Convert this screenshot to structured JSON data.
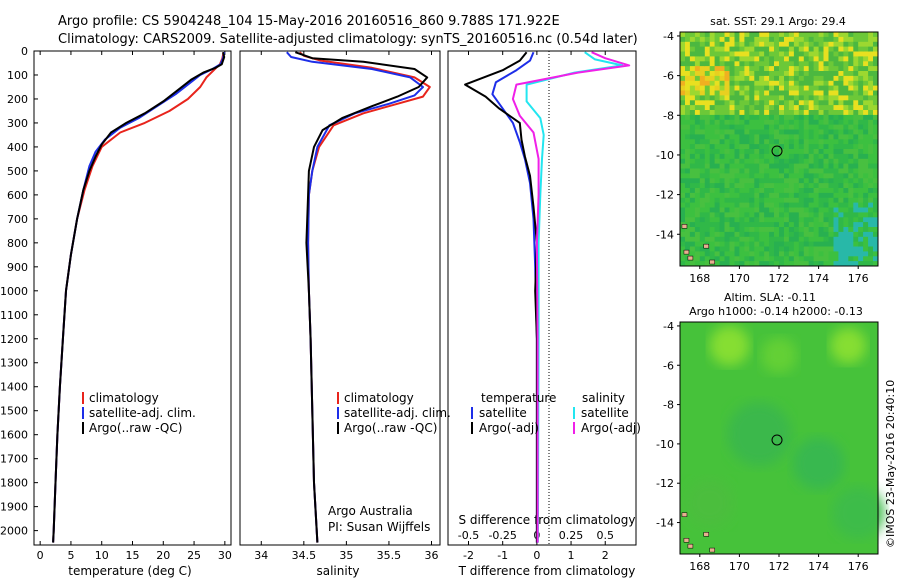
{
  "title_line1": "Argo profile: CS 5904248_104 15-May-2016 20160516_860 9.788S 171.922E",
  "title_line2": "Climatology: CARS2009. Satellite-adjusted climatology: synTS_20160516.nc (0.54d later)",
  "credit_line1": "Argo Australia",
  "credit_line2": "PI: Susan Wijffels",
  "timestamp": "©IMOS 23-May-2016 20:40:10",
  "colors": {
    "climatology": "#e8241c",
    "satellite": "#1d2ee8",
    "argo": "#000000",
    "sal_satellite": "#22e6f0",
    "sal_argo": "#f020e8"
  },
  "legend_profiles": [
    "climatology",
    "satellite-adj. clim.",
    "Argo(..raw -QC)"
  ],
  "legend_diff": {
    "temp_header": "temperature",
    "sal_header": "salinity",
    "satellite": "satellite",
    "argo": "Argo(-adj)"
  },
  "chart_data": [
    {
      "type": "line",
      "xlabel": "temperature (deg C)",
      "ylabel": "",
      "xlim": [
        -1,
        31
      ],
      "ylim": [
        2060,
        0
      ],
      "xticks": [
        0,
        5,
        10,
        15,
        20,
        25,
        30
      ],
      "yticks": [
        0,
        100,
        200,
        300,
        400,
        500,
        600,
        700,
        800,
        900,
        1000,
        1100,
        1200,
        1300,
        1400,
        1500,
        1600,
        1700,
        1800,
        1900,
        2000
      ],
      "series": [
        {
          "name": "climatology",
          "color": "#e8241c",
          "points": [
            [
              29.8,
              5
            ],
            [
              29.6,
              30
            ],
            [
              29.2,
              55
            ],
            [
              28.2,
              80
            ],
            [
              27,
              110
            ],
            [
              26,
              150
            ],
            [
              24,
              200
            ],
            [
              21,
              250
            ],
            [
              17,
              300
            ],
            [
              13,
              340
            ],
            [
              10,
              400
            ],
            [
              8.5,
              480
            ],
            [
              7.2,
              580
            ],
            [
              6,
              700
            ],
            [
              5,
              850
            ],
            [
              4.2,
              1000
            ],
            [
              3.7,
              1200
            ],
            [
              3.2,
              1400
            ],
            [
              2.8,
              1600
            ],
            [
              2.5,
              1800
            ],
            [
              2.2,
              2000
            ],
            [
              2.1,
              2050
            ]
          ]
        },
        {
          "name": "satellite-adj. clim.",
          "color": "#1d2ee8",
          "points": [
            [
              29.9,
              5
            ],
            [
              29.7,
              30
            ],
            [
              29.3,
              55
            ],
            [
              28,
              75
            ],
            [
              26,
              100
            ],
            [
              24,
              140
            ],
            [
              22,
              180
            ],
            [
              19,
              230
            ],
            [
              16,
              280
            ],
            [
              13,
              320
            ],
            [
              10.5,
              370
            ],
            [
              9,
              420
            ],
            [
              8,
              480
            ],
            [
              7,
              580
            ],
            [
              6,
              700
            ],
            [
              5,
              850
            ],
            [
              4.2,
              1000
            ],
            [
              3.7,
              1200
            ],
            [
              3.2,
              1400
            ],
            [
              2.8,
              1600
            ],
            [
              2.5,
              1800
            ],
            [
              2.2,
              2000
            ],
            [
              2.1,
              2050
            ]
          ]
        },
        {
          "name": "Argo(..raw -QC)",
          "color": "#000000",
          "points": [
            [
              29.7,
              5
            ],
            [
              29.9,
              25
            ],
            [
              29.5,
              55
            ],
            [
              28.5,
              70
            ],
            [
              26.5,
              90
            ],
            [
              24.5,
              120
            ],
            [
              22.5,
              160
            ],
            [
              20,
              210
            ],
            [
              17,
              260
            ],
            [
              14,
              300
            ],
            [
              11.5,
              340
            ],
            [
              10,
              390
            ],
            [
              9,
              440
            ],
            [
              8,
              500
            ],
            [
              7,
              580
            ],
            [
              6,
              700
            ],
            [
              5,
              850
            ],
            [
              4.2,
              1000
            ],
            [
              3.7,
              1200
            ],
            [
              3.2,
              1400
            ],
            [
              2.8,
              1600
            ],
            [
              2.5,
              1800
            ],
            [
              2.2,
              2000
            ],
            [
              2.1,
              2050
            ]
          ]
        }
      ]
    },
    {
      "type": "line",
      "xlabel": "salinity",
      "ylabel": "",
      "xlim": [
        33.75,
        36.1
      ],
      "ylim": [
        2060,
        0
      ],
      "xticks": [
        34,
        34.5,
        35,
        35.5,
        36
      ],
      "series": [
        {
          "name": "climatology",
          "color": "#e8241c",
          "points": [
            [
              34.45,
              5
            ],
            [
              34.5,
              20
            ],
            [
              34.7,
              40
            ],
            [
              35.3,
              70
            ],
            [
              35.8,
              110
            ],
            [
              35.98,
              150
            ],
            [
              35.9,
              190
            ],
            [
              35.6,
              220
            ],
            [
              35.2,
              260
            ],
            [
              34.85,
              310
            ],
            [
              34.68,
              400
            ],
            [
              34.6,
              500
            ],
            [
              34.56,
              600
            ],
            [
              34.55,
              800
            ],
            [
              34.56,
              1000
            ],
            [
              34.58,
              1200
            ],
            [
              34.6,
              1500
            ],
            [
              34.62,
              1800
            ],
            [
              34.66,
              2050
            ]
          ]
        },
        {
          "name": "satellite-adj. clim.",
          "color": "#1d2ee8",
          "points": [
            [
              34.3,
              5
            ],
            [
              34.35,
              25
            ],
            [
              34.6,
              45
            ],
            [
              35.3,
              75
            ],
            [
              35.75,
              110
            ],
            [
              35.9,
              150
            ],
            [
              35.8,
              185
            ],
            [
              35.5,
              220
            ],
            [
              35.1,
              260
            ],
            [
              34.8,
              310
            ],
            [
              34.66,
              400
            ],
            [
              34.6,
              500
            ],
            [
              34.56,
              600
            ],
            [
              34.55,
              800
            ],
            [
              34.56,
              1000
            ],
            [
              34.58,
              1200
            ],
            [
              34.6,
              1500
            ],
            [
              34.62,
              1800
            ],
            [
              34.66,
              2050
            ]
          ]
        },
        {
          "name": "Argo(..raw -QC)",
          "color": "#000000",
          "points": [
            [
              34.4,
              5
            ],
            [
              34.6,
              30
            ],
            [
              35.2,
              45
            ],
            [
              35.8,
              75
            ],
            [
              35.95,
              110
            ],
            [
              35.85,
              150
            ],
            [
              35.6,
              190
            ],
            [
              35.3,
              230
            ],
            [
              34.95,
              280
            ],
            [
              34.72,
              330
            ],
            [
              34.62,
              400
            ],
            [
              34.56,
              500
            ],
            [
              34.55,
              600
            ],
            [
              34.53,
              800
            ],
            [
              34.56,
              1000
            ],
            [
              34.58,
              1200
            ],
            [
              34.6,
              1500
            ],
            [
              34.62,
              1800
            ],
            [
              34.66,
              2050
            ]
          ]
        }
      ]
    },
    {
      "type": "line",
      "xlabel": "T difference from climatology",
      "ylabel": "",
      "x2label": "S difference from climatology",
      "xlim": [
        -2.6,
        2.9
      ],
      "ylim": [
        2060,
        0
      ],
      "xticks": [
        -2,
        -1,
        0,
        1,
        2
      ],
      "x2ticks": [
        {
          "label": "-0.5",
          "t": -2
        },
        {
          "label": "-0.25",
          "t": -1
        },
        {
          "label": "0",
          "t": 0
        },
        {
          "label": "0.25",
          "t": 1
        },
        {
          "label": "0.5",
          "t": 2
        }
      ],
      "series": [
        {
          "name": "temperature satellite",
          "color": "#1d2ee8",
          "points": [
            [
              -0.1,
              5
            ],
            [
              -0.2,
              40
            ],
            [
              -0.6,
              80
            ],
            [
              -1.2,
              130
            ],
            [
              -1.3,
              180
            ],
            [
              -1.0,
              240
            ],
            [
              -0.7,
              300
            ],
            [
              -0.5,
              380
            ],
            [
              -0.35,
              450
            ],
            [
              -0.2,
              550
            ],
            [
              -0.1,
              700
            ],
            [
              -0.05,
              900
            ],
            [
              0,
              1200
            ],
            [
              0,
              2050
            ]
          ]
        },
        {
          "name": "temperature Argo(-adj)",
          "color": "#000000",
          "points": [
            [
              -0.3,
              5
            ],
            [
              -0.5,
              40
            ],
            [
              -1.0,
              80
            ],
            [
              -2.1,
              140
            ],
            [
              -1.5,
              190
            ],
            [
              -1.1,
              240
            ],
            [
              -0.5,
              300
            ],
            [
              -0.45,
              370
            ],
            [
              -0.35,
              440
            ],
            [
              -0.2,
              520
            ],
            [
              -0.1,
              650
            ],
            [
              0,
              800
            ],
            [
              -0.05,
              1000
            ],
            [
              0,
              1200
            ],
            [
              0,
              2050
            ]
          ]
        },
        {
          "name": "salinity satellite",
          "color": "#22e6f0",
          "points": [
            [
              1.4,
              5
            ],
            [
              1.7,
              35
            ],
            [
              2.5,
              60
            ],
            [
              1.1,
              90
            ],
            [
              -0.3,
              140
            ],
            [
              -0.3,
              210
            ],
            [
              0.1,
              280
            ],
            [
              0.2,
              350
            ],
            [
              0.15,
              450
            ],
            [
              0.1,
              600
            ],
            [
              0.05,
              800
            ],
            [
              0.05,
              1200
            ],
            [
              0.03,
              2050
            ]
          ]
        },
        {
          "name": "salinity Argo(-adj)",
          "color": "#f020e8",
          "points": [
            [
              1.6,
              5
            ],
            [
              2.0,
              30
            ],
            [
              2.7,
              60
            ],
            [
              1.2,
              90
            ],
            [
              -0.6,
              140
            ],
            [
              -0.7,
              200
            ],
            [
              -0.5,
              270
            ],
            [
              -0.1,
              340
            ],
            [
              0.05,
              450
            ],
            [
              0.05,
              600
            ],
            [
              0,
              800
            ],
            [
              0.02,
              1200
            ],
            [
              0.02,
              2050
            ]
          ]
        }
      ]
    },
    {
      "type": "heatmap",
      "title": "sat. SST: 29.1  Argo: 29.4",
      "xlim": [
        167,
        177
      ],
      "ylim": [
        -15.6,
        -3.8
      ],
      "xticks": [
        168,
        170,
        172,
        174,
        176
      ],
      "yticks": [
        -4,
        -6,
        -8,
        -10,
        -12,
        -14
      ],
      "marker": {
        "x": 171.9,
        "y": -9.8
      }
    },
    {
      "type": "heatmap",
      "title": "Altim. SLA: -0.11",
      "subtitle": "Argo h1000: -0.14  h2000: -0.13",
      "xlim": [
        167,
        177
      ],
      "ylim": [
        -15.6,
        -3.8
      ],
      "xticks": [
        168,
        170,
        172,
        174,
        176
      ],
      "yticks": [
        -4,
        -6,
        -8,
        -10,
        -12,
        -14
      ],
      "marker": {
        "x": 171.9,
        "y": -9.8
      }
    }
  ]
}
